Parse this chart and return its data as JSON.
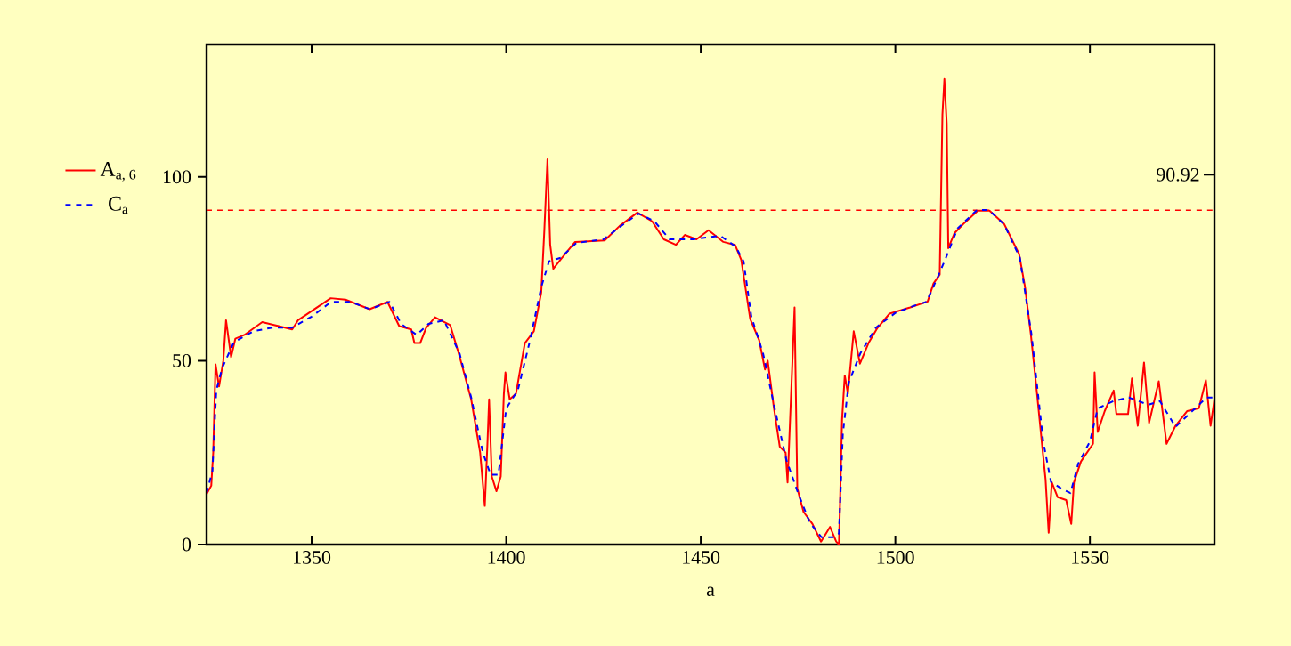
{
  "chart_data": {
    "type": "line",
    "xlabel": "a",
    "xlim": [
      1323,
      1582
    ],
    "ylim": [
      0,
      136
    ],
    "xticks": [
      1350,
      1400,
      1450,
      1500,
      1550
    ],
    "yticks": [
      0,
      50,
      100
    ],
    "legend": "left",
    "grid": false,
    "marker": "none",
    "ref_lines": [
      {
        "axis": "y",
        "value": 90.92,
        "label": "90.92",
        "color": "#ff0000",
        "line_style": "dashed"
      }
    ],
    "series": [
      {
        "name": "A$_{a, 6}$",
        "color": "#ff0000",
        "line_style": "solid",
        "x": [
          1323,
          1324.2,
          1324.7,
          1325.3,
          1326.2,
          1327.3,
          1328,
          1329.3,
          1330.4,
          1332.7,
          1337.3,
          1345,
          1346.5,
          1354.9,
          1358.7,
          1364.9,
          1369.5,
          1372.5,
          1375.6,
          1376.4,
          1377.9,
          1379.4,
          1381.7,
          1385.6,
          1387.9,
          1391,
          1393.3,
          1394.5,
          1395.2,
          1395.6,
          1396.3,
          1397.5,
          1398.6,
          1399.4,
          1399.8,
          1400.9,
          1402.5,
          1404.8,
          1407.1,
          1409,
          1409.8,
          1410.6,
          1411.3,
          1412.1,
          1413.9,
          1417.7,
          1425.3,
          1429.1,
          1433.7,
          1437.5,
          1440.5,
          1443.6,
          1445.9,
          1448.9,
          1452,
          1455.8,
          1458.8,
          1460.4,
          1462.7,
          1465,
          1466.5,
          1467.2,
          1468.8,
          1470.3,
          1471.8,
          1472.3,
          1472.9,
          1473.6,
          1474.1,
          1474.8,
          1476.4,
          1478.7,
          1480.9,
          1483.2,
          1484.8,
          1485.5,
          1485.8,
          1486.3,
          1487,
          1487.8,
          1489.3,
          1490.9,
          1493.1,
          1495.4,
          1498.5,
          1503.8,
          1508.3,
          1509.8,
          1511.4,
          1512.1,
          1512.6,
          1513.2,
          1513.6,
          1515.2,
          1517.4,
          1521.2,
          1524.2,
          1528,
          1531.8,
          1533.3,
          1534.8,
          1536.4,
          1537.9,
          1538.6,
          1539.4,
          1540.2,
          1541.7,
          1543.9,
          1545.2,
          1545.9,
          1547.7,
          1550.8,
          1551.2,
          1552,
          1553.8,
          1556.1,
          1556.8,
          1559.8,
          1560.8,
          1562.3,
          1563.9,
          1565.2,
          1567.7,
          1569.7,
          1572,
          1575,
          1578,
          1579.8,
          1581,
          1582
        ],
        "values": [
          13.7,
          16,
          25,
          49,
          43,
          50,
          61,
          51,
          56,
          57,
          60.5,
          58.5,
          61,
          67,
          66.6,
          64,
          66,
          59.4,
          58.5,
          54.8,
          54.8,
          58.9,
          61.8,
          59.7,
          51.6,
          39.5,
          25,
          10.5,
          28,
          39.5,
          18.5,
          14.5,
          18.5,
          41,
          46.8,
          39.5,
          41,
          54.8,
          58,
          68.5,
          85.5,
          104.8,
          81.5,
          75,
          77.4,
          82.3,
          82.7,
          86.6,
          90.3,
          87.9,
          83,
          81.5,
          84.2,
          83,
          85.5,
          82.3,
          81.5,
          77.4,
          61.3,
          55.6,
          47.6,
          50,
          37.1,
          26.6,
          25,
          16.9,
          null,
          null,
          64.5,
          15.3,
          8.9,
          5.6,
          0.8,
          4.8,
          0.8,
          0,
          12,
          33.9,
          46,
          41,
          58,
          49.2,
          54.8,
          58.9,
          62.8,
          64.5,
          66.1,
          71,
          73.4,
          117,
          126.6,
          114.5,
          80.6,
          84.7,
          87.1,
          90.8,
          90.8,
          87.1,
          79,
          70.2,
          57.3,
          41.1,
          25,
          17.7,
          3.2,
          16.9,
          12.9,
          12.1,
          5.6,
          16.9,
          22.6,
          27.4,
          46.8,
          30.6,
          36.3,
          41.9,
          35.5,
          35.5,
          45.2,
          32.3,
          49.5,
          33.1,
          44.4,
          27.4,
          32.3,
          36.3,
          37.1,
          44.7,
          32.3,
          39.5
        ]
      },
      {
        "name": "C$_{a}$",
        "color": "#0000ff",
        "line_style": "dashed",
        "x": [
          1323,
          1324.5,
          1325.5,
          1327,
          1330,
          1335,
          1340,
          1345,
          1350,
          1355,
          1360,
          1365,
          1370,
          1373,
          1377,
          1380,
          1384,
          1388,
          1391,
          1394,
          1396,
          1398,
          1400,
          1403,
          1406,
          1409,
          1411,
          1414,
          1418,
          1425,
          1430,
          1434,
          1438,
          1442,
          1448,
          1455,
          1459,
          1461,
          1463,
          1466,
          1469,
          1472,
          1475,
          1478,
          1481,
          1484,
          1485.5,
          1486.5,
          1488,
          1491,
          1495,
          1500,
          1505,
          1508,
          1511,
          1513,
          1516,
          1521,
          1524,
          1528,
          1532,
          1535,
          1538,
          1540,
          1543,
          1545,
          1547,
          1550,
          1552,
          1556,
          1560,
          1565,
          1568,
          1572,
          1576,
          1580,
          1582
        ],
        "values": [
          14,
          20,
          42,
          48,
          55,
          58,
          59,
          59,
          62,
          66,
          66,
          64,
          66,
          60,
          57,
          60,
          61,
          52,
          40,
          25,
          19,
          19,
          37,
          42,
          55,
          70,
          77,
          78,
          82,
          83,
          87,
          90,
          88,
          83,
          83,
          84,
          81,
          77,
          62,
          52,
          37,
          23,
          14,
          6,
          2,
          2,
          3,
          30,
          44,
          52,
          59,
          63,
          65,
          66,
          73,
          78,
          86,
          91,
          91,
          87,
          78,
          57,
          28,
          17,
          15,
          14,
          22,
          28,
          37,
          39,
          40,
          38,
          39,
          32,
          36,
          40,
          40
        ]
      }
    ]
  }
}
